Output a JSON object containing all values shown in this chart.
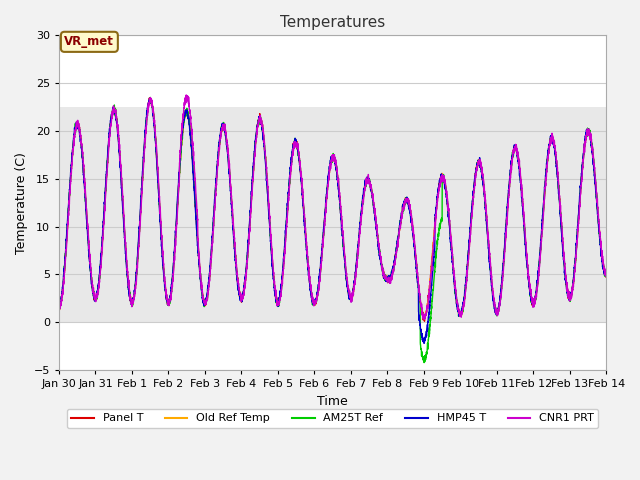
{
  "title": "Temperatures",
  "xlabel": "Time",
  "ylabel": "Temperature (C)",
  "ylim": [
    -5,
    30
  ],
  "yticks": [
    -5,
    0,
    5,
    10,
    15,
    20,
    25,
    30
  ],
  "annotation_text": "VR_met",
  "shaded_ymin": 0,
  "shaded_ymax": 22.5,
  "legend_entries": [
    "Panel T",
    "Old Ref Temp",
    "AM25T Ref",
    "HMP45 T",
    "CNR1 PRT"
  ],
  "line_colors": [
    "#dd0000",
    "#ffaa00",
    "#00cc00",
    "#0000cc",
    "#cc00cc"
  ],
  "line_widths": [
    1.0,
    1.0,
    1.0,
    1.0,
    1.0
  ],
  "xtick_labels": [
    "Jan 30",
    "Jan 31",
    "Feb 1",
    "Feb 2",
    "Feb 3",
    "Feb 4",
    "Feb 5",
    "Feb 6",
    "Feb 7",
    "Feb 8",
    "Feb 9",
    "Feb 10",
    "Feb 11",
    "Feb 12",
    "Feb 13",
    "Feb 14"
  ],
  "xtick_positions": [
    0,
    1,
    2,
    3,
    4,
    5,
    6,
    7,
    8,
    9,
    10,
    11,
    12,
    13,
    14,
    15
  ],
  "figsize": [
    6.4,
    4.8
  ],
  "dpi": 100
}
